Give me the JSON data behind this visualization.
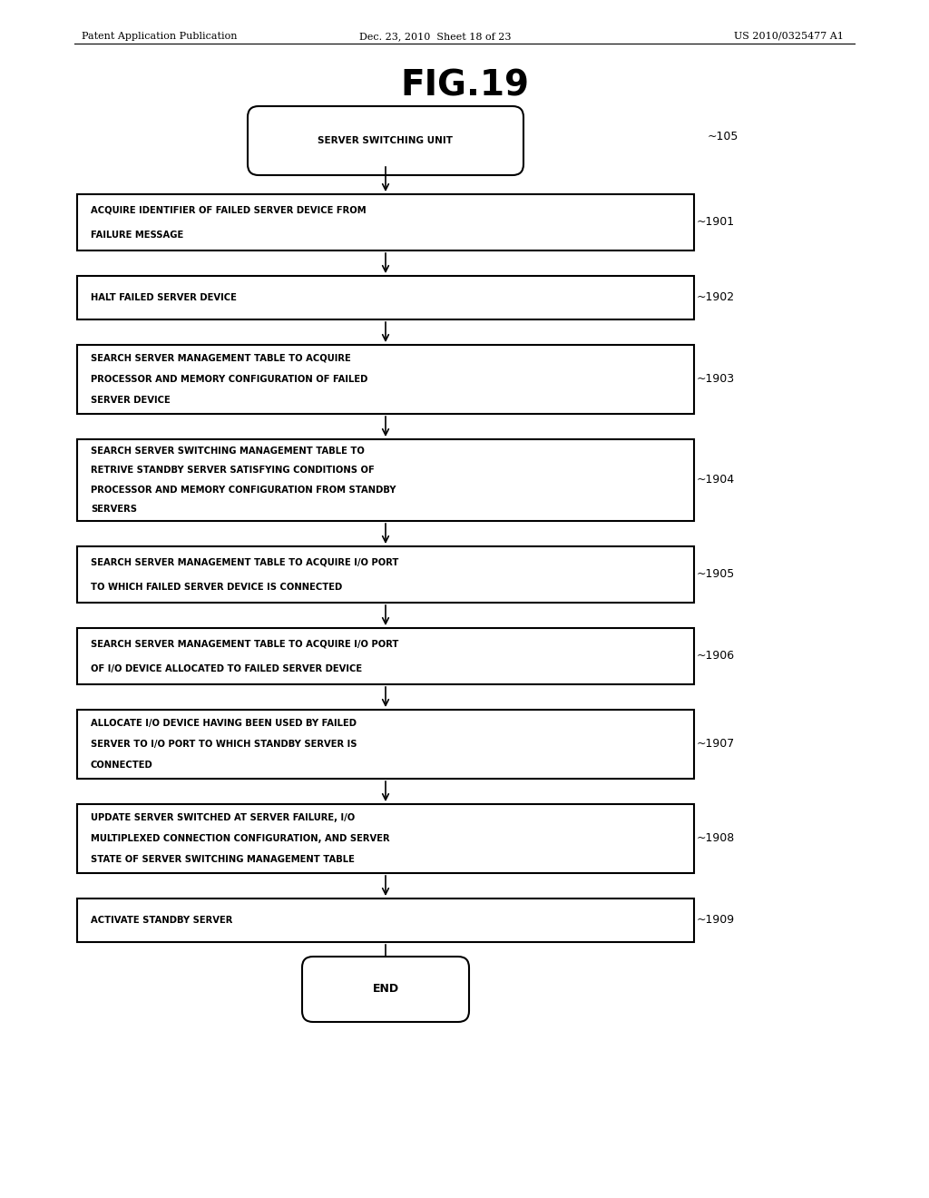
{
  "header_left": "Patent Application Publication",
  "header_mid": "Dec. 23, 2010  Sheet 18 of 23",
  "header_right": "US 2010/0325477 A1",
  "fig_title": "FIG.19",
  "bg_color": "#ffffff",
  "start_label": "SERVER SWITCHING UNIT",
  "start_ref": "105",
  "end_label": "END",
  "boxes": [
    {
      "id": 1901,
      "lines": [
        "ACQUIRE IDENTIFIER OF FAILED SERVER DEVICE FROM",
        "FAILURE MESSAGE"
      ]
    },
    {
      "id": 1902,
      "lines": [
        "HALT FAILED SERVER DEVICE"
      ]
    },
    {
      "id": 1903,
      "lines": [
        "SEARCH SERVER MANAGEMENT TABLE TO ACQUIRE",
        "PROCESSOR AND MEMORY CONFIGURATION OF FAILED",
        "SERVER DEVICE"
      ]
    },
    {
      "id": 1904,
      "lines": [
        "SEARCH SERVER SWITCHING MANAGEMENT TABLE TO",
        "RETRIVE STANDBY SERVER SATISFYING CONDITIONS OF",
        "PROCESSOR AND MEMORY CONFIGURATION FROM STANDBY",
        "SERVERS"
      ]
    },
    {
      "id": 1905,
      "lines": [
        "SEARCH SERVER MANAGEMENT TABLE TO ACQUIRE I/O PORT",
        "TO WHICH FAILED SERVER DEVICE IS CONNECTED"
      ]
    },
    {
      "id": 1906,
      "lines": [
        "SEARCH SERVER MANAGEMENT TABLE TO ACQUIRE I/O PORT",
        "OF I/O DEVICE ALLOCATED TO FAILED SERVER DEVICE"
      ]
    },
    {
      "id": 1907,
      "lines": [
        "ALLOCATE I/O DEVICE HAVING BEEN USED BY FAILED",
        "SERVER TO I/O PORT TO WHICH STANDBY SERVER IS",
        "CONNECTED"
      ]
    },
    {
      "id": 1908,
      "lines": [
        "UPDATE SERVER SWITCHED AT SERVER FAILURE, I/O",
        "MULTIPLEXED CONNECTION CONFIGURATION, AND SERVER",
        "STATE OF SERVER SWITCHING MANAGEMENT TABLE"
      ]
    },
    {
      "id": 1909,
      "lines": [
        "ACTIVATE STANDBY SERVER"
      ]
    }
  ]
}
